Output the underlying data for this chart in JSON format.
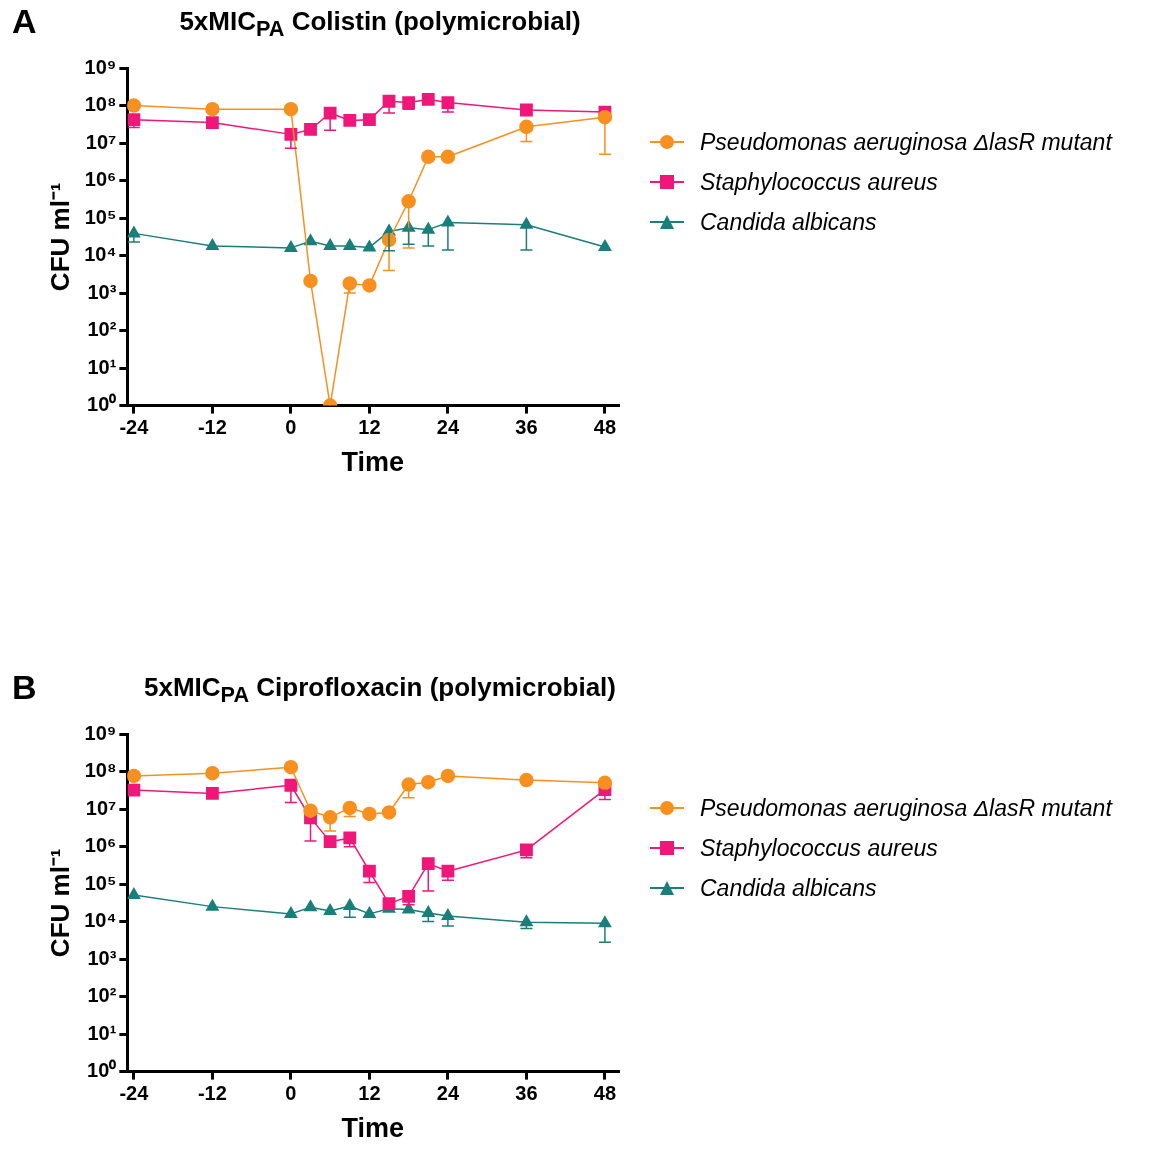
{
  "chart_data": [
    {
      "type": "line",
      "title": "5xMIC$_{PA}$ Colistin (polymicrobial)",
      "xlabel": "Time",
      "ylabel": "CFU ml⁻¹",
      "annotations": [
        "A"
      ],
      "x": [
        -24,
        -12,
        0,
        3,
        6,
        9,
        12,
        15,
        18,
        21,
        24,
        36,
        48
      ],
      "xlim": [
        -25,
        50
      ],
      "xticks": [
        -24,
        -12,
        0,
        12,
        24,
        36,
        48
      ],
      "ylim": [
        1,
        1000000000
      ],
      "yticks": [
        {
          "value": 1,
          "label": "10⁰"
        },
        {
          "value": 10,
          "label": "10¹"
        },
        {
          "value": 100,
          "label": "10²"
        },
        {
          "value": 1000,
          "label": "10³"
        },
        {
          "value": 10000,
          "label": "10⁴"
        },
        {
          "value": 100000,
          "label": "10⁵"
        },
        {
          "value": 1000000,
          "label": "10⁶"
        },
        {
          "value": 10000000,
          "label": "10⁷"
        },
        {
          "value": 100000000,
          "label": "10⁸"
        },
        {
          "value": 1000000000,
          "label": "10⁹"
        }
      ],
      "log": "y",
      "grid": false,
      "legend": "right",
      "series": [
        {
          "name": "Pseudomonas aeruginosa ΔlasR mutant",
          "color": "#f7901e",
          "marker": "circle",
          "values": [
            100000000,
            80000000,
            80000000,
            2100,
            1,
            1800,
            1600,
            26000,
            280000,
            4300000,
            4300000,
            27000000,
            49000000
          ],
          "errors": [
            null,
            null,
            null,
            null,
            null,
            [
              1000,
              1800
            ],
            null,
            [
              4000,
              26000
            ],
            [
              16000,
              280000
            ],
            null,
            null,
            [
              11000000,
              27000000
            ],
            [
              5000000,
              49000000
            ]
          ]
        },
        {
          "name": "Staphylococcus aureus",
          "color": "#f0167a",
          "marker": "square",
          "values": [
            42000000,
            35000000,
            17000000,
            23000000,
            63000000,
            40000000,
            42000000,
            130000000,
            120000000,
            145000000,
            120000000,
            76000000,
            67000000
          ],
          "errors": [
            [
              26000000,
              42000000
            ],
            null,
            [
              7200000,
              17000000
            ],
            null,
            [
              22000000,
              63000000
            ],
            null,
            null,
            [
              63000000,
              130000000
            ],
            [
              80000000,
              120000000
            ],
            null,
            [
              67000000,
              120000000
            ],
            null,
            null
          ]
        },
        {
          "name": "Candida albicans",
          "color": "#1a7f7a",
          "marker": "triangle",
          "values": [
            39000,
            18000,
            16000,
            24000,
            18000,
            18000,
            16500,
            44000,
            55000,
            49000,
            76000,
            66000,
            17000
          ],
          "errors": [
            [
              23000,
              39000
            ],
            null,
            null,
            null,
            null,
            null,
            null,
            [
              13500,
              44000
            ],
            [
              20000,
              55000
            ],
            [
              18000,
              49000
            ],
            [
              14000,
              76000
            ],
            [
              14000,
              66000
            ],
            null
          ]
        }
      ]
    },
    {
      "type": "line",
      "title": "5xMIC$_{PA}$ Ciprofloxacin (polymicrobial)",
      "xlabel": "Time",
      "ylabel": "CFU ml⁻¹",
      "annotations": [
        "B"
      ],
      "x": [
        -24,
        -12,
        0,
        3,
        6,
        9,
        12,
        15,
        18,
        21,
        24,
        36,
        48
      ],
      "xlim": [
        -25,
        50
      ],
      "xticks": [
        -24,
        -12,
        0,
        12,
        24,
        36,
        48
      ],
      "ylim": [
        1,
        1000000000
      ],
      "yticks": [
        {
          "value": 1,
          "label": "10⁰"
        },
        {
          "value": 10,
          "label": "10¹"
        },
        {
          "value": 100,
          "label": "10²"
        },
        {
          "value": 1000,
          "label": "10³"
        },
        {
          "value": 10000,
          "label": "10⁴"
        },
        {
          "value": 100000,
          "label": "10⁵"
        },
        {
          "value": 1000000,
          "label": "10⁶"
        },
        {
          "value": 10000000,
          "label": "10⁷"
        },
        {
          "value": 100000000,
          "label": "10⁸"
        },
        {
          "value": 1000000000,
          "label": "10⁹"
        }
      ],
      "log": "y",
      "grid": false,
      "legend": "right",
      "series": [
        {
          "name": "Pseudomonas aeruginosa ΔlasR mutant",
          "color": "#f7901e",
          "marker": "circle",
          "values": [
            76000000,
            90000000,
            130000000,
            9000000,
            6000000,
            10700000,
            7400000,
            8100000,
            45000000,
            52000000,
            76000000,
            59000000,
            50000000
          ],
          "errors": [
            null,
            null,
            null,
            null,
            [
              2600000,
              6000000
            ],
            [
              6300000,
              10700000
            ],
            null,
            null,
            [
              20000000,
              45000000
            ],
            null,
            null,
            null,
            null
          ]
        },
        {
          "name": "Staphylococcus aureus",
          "color": "#f0167a",
          "marker": "square",
          "values": [
            32000000,
            26000000,
            43000000,
            5800000,
            1350000,
            1700000,
            220000,
            30000,
            47000,
            350000,
            220000,
            810000,
            33000000
          ],
          "errors": [
            null,
            null,
            [
              15000000,
              43000000
            ],
            [
              1400000,
              5800000
            ],
            null,
            [
              980000,
              1700000
            ],
            [
              110000,
              220000
            ],
            null,
            [
              28000,
              47000
            ],
            [
              65000,
              350000
            ],
            [
              126000,
              220000
            ],
            [
              500000,
              810000
            ],
            [
              18000000,
              33000000
            ]
          ]
        },
        {
          "name": "Candida albicans",
          "color": "#1a7f7a",
          "marker": "triangle",
          "values": [
            51000,
            25000,
            16000,
            24000,
            19000,
            26000,
            16000,
            22000,
            21000,
            17000,
            14000,
            9600,
            9000
          ],
          "errors": [
            null,
            null,
            null,
            null,
            null,
            [
              13000,
              26000
            ],
            null,
            null,
            null,
            [
              10000,
              17000
            ],
            [
              7600,
              14000
            ],
            [
              6500,
              9600
            ],
            [
              2800,
              9000
            ]
          ]
        }
      ]
    }
  ]
}
